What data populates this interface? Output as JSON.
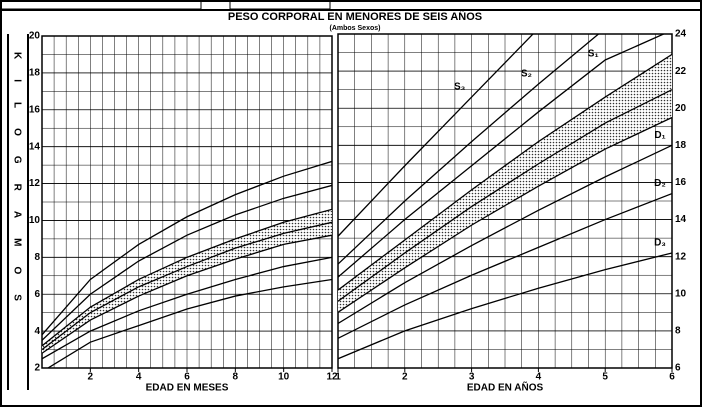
{
  "title": "PESO CORPORAL EN MENORES DE SEIS AÑOS",
  "subtitle": "(Ambos Sexos)",
  "y_label": "KILOGRAMOS",
  "chart_data": [
    {
      "type": "line",
      "x_label": "EDAD EN MESES",
      "color": "#000000",
      "x": [
        0,
        2,
        4,
        6,
        8,
        10,
        12
      ],
      "xlim": [
        0,
        12
      ],
      "xticks": [
        2,
        4,
        6,
        8,
        10,
        12
      ],
      "ylim": [
        2,
        20
      ],
      "yticks": [
        2,
        4,
        6,
        8,
        10,
        12,
        14,
        16,
        18,
        20
      ],
      "grid": true,
      "band": {
        "upper": [
          3.2,
          5.3,
          6.8,
          8.0,
          9.0,
          9.9,
          10.6
        ],
        "median": [
          3.0,
          5.0,
          6.4,
          7.5,
          8.5,
          9.3,
          9.9
        ],
        "lower": [
          2.8,
          4.6,
          5.9,
          7.0,
          7.9,
          8.7,
          9.2
        ]
      },
      "series": [
        {
          "values": [
            3.8,
            6.8,
            8.7,
            10.2,
            11.4,
            12.4,
            13.2
          ]
        },
        {
          "values": [
            3.5,
            6.0,
            7.8,
            9.2,
            10.3,
            11.2,
            11.9
          ]
        },
        {
          "values": [
            2.5,
            4.0,
            5.1,
            6.0,
            6.8,
            7.5,
            8.0
          ]
        },
        {
          "values": [
            1.8,
            3.4,
            4.3,
            5.2,
            5.9,
            6.4,
            6.8
          ]
        }
      ]
    },
    {
      "type": "line",
      "x_label": "EDAD EN AÑOS",
      "color": "#000000",
      "x": [
        1,
        2,
        3,
        4,
        5,
        6
      ],
      "xlim": [
        1,
        6
      ],
      "xticks": [
        1,
        2,
        3,
        4,
        5,
        6
      ],
      "y2lim": [
        6,
        24
      ],
      "y2ticks": [
        6,
        8,
        10,
        12,
        14,
        16,
        18,
        20,
        22,
        24
      ],
      "grid": true,
      "band": {
        "upper": [
          10.2,
          12.9,
          15.6,
          18.2,
          20.6,
          22.9
        ],
        "median": [
          9.6,
          12.2,
          14.7,
          17.0,
          19.2,
          21.0
        ],
        "lower": [
          9.0,
          11.4,
          13.7,
          15.8,
          17.8,
          19.5
        ]
      },
      "series": [
        {
          "name": "S₃",
          "axis": "y2",
          "values": [
            13.1,
            16.9,
            20.6,
            24.3,
            null,
            null
          ]
        },
        {
          "name": "S₂",
          "axis": "y2",
          "values": [
            11.6,
            15.0,
            18.2,
            21.3,
            24.3,
            null
          ]
        },
        {
          "name": "S₁",
          "axis": "y2",
          "values": [
            10.9,
            14.0,
            16.9,
            19.8,
            22.6,
            24.2
          ]
        },
        {
          "name": "D₁",
          "axis": "y2",
          "values": [
            8.4,
            10.6,
            12.6,
            14.5,
            16.3,
            18.0
          ]
        },
        {
          "name": "D₂",
          "axis": "y2",
          "values": [
            7.6,
            9.4,
            11.0,
            12.5,
            14.0,
            15.4
          ]
        },
        {
          "name": "D₃",
          "axis": "y2",
          "values": [
            6.5,
            8.0,
            9.2,
            10.3,
            11.3,
            12.2
          ]
        }
      ]
    }
  ]
}
